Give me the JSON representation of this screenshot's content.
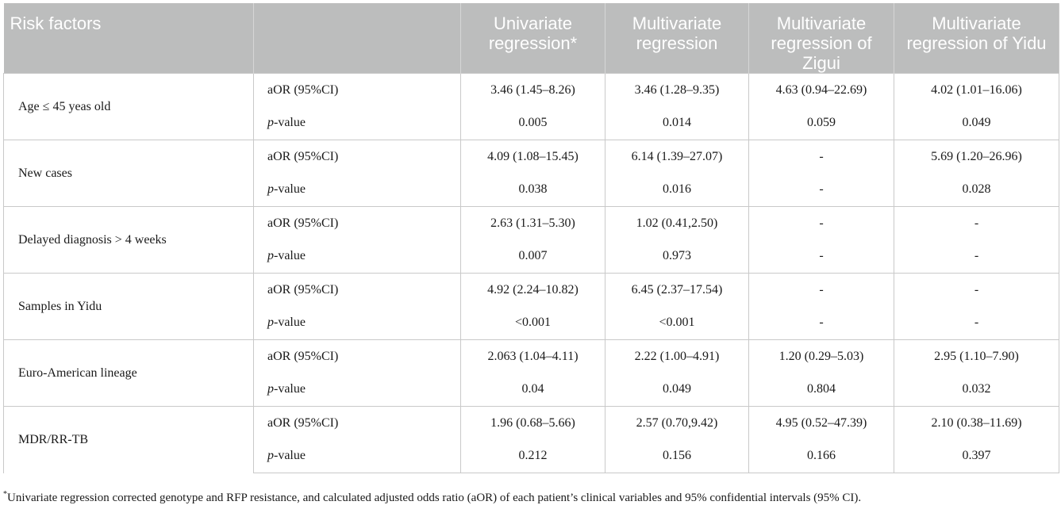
{
  "headers": {
    "risk_factors": "Risk factors",
    "blank": "",
    "univariate": "Univariate regression*",
    "multivariate": "Multivariate regression",
    "multi_zigui": "Multivariate regression of Zigui",
    "multi_yidu": "Multivariate regression of Yidu"
  },
  "labels": {
    "aor": "aOR (95%CI)",
    "p_prefix": "p",
    "p_suffix": "-value"
  },
  "rows": [
    {
      "factor": "Age ≤ 45 yeas old",
      "aor": [
        "3.46 (1.45–8.26)",
        "3.46 (1.28–9.35)",
        "4.63 (0.94–22.69)",
        "4.02 (1.01–16.06)"
      ],
      "p": [
        "0.005",
        "0.014",
        "0.059",
        "0.049"
      ]
    },
    {
      "factor": "New cases",
      "aor": [
        "4.09 (1.08–15.45)",
        "6.14 (1.39–27.07)",
        "-",
        "5.69 (1.20–26.96)"
      ],
      "p": [
        "0.038",
        "0.016",
        "-",
        "0.028"
      ]
    },
    {
      "factor": "Delayed diagnosis > 4 weeks",
      "aor": [
        "2.63 (1.31–5.30)",
        "1.02 (0.41,2.50)",
        "-",
        "-"
      ],
      "p": [
        "0.007",
        "0.973",
        "-",
        "-"
      ]
    },
    {
      "factor": "Samples in Yidu",
      "aor": [
        "4.92 (2.24–10.82)",
        "6.45 (2.37–17.54)",
        "-",
        "-"
      ],
      "p": [
        "<0.001",
        "<0.001",
        "-",
        "-"
      ]
    },
    {
      "factor": "Euro-American lineage",
      "aor": [
        "2.063 (1.04–4.11)",
        "2.22 (1.00–4.91)",
        "1.20 (0.29–5.03)",
        "2.95 (1.10–7.90)"
      ],
      "p": [
        "0.04",
        "0.049",
        "0.804",
        "0.032"
      ]
    },
    {
      "factor": "MDR/RR-TB",
      "aor": [
        "1.96 (0.68–5.66)",
        "2.57 (0.70,9.42)",
        "4.95 (0.52–47.39)",
        "2.10 (0.38–11.69)"
      ],
      "p": [
        "0.212",
        "0.156",
        "0.166",
        "0.397"
      ]
    }
  ],
  "footnote": {
    "marker": "*",
    "text": "Univariate regression corrected genotype and RFP resistance, and calculated adjusted odds ratio (aOR) of each patient’s clinical variables and 95% confidential intervals (95% CI)."
  }
}
